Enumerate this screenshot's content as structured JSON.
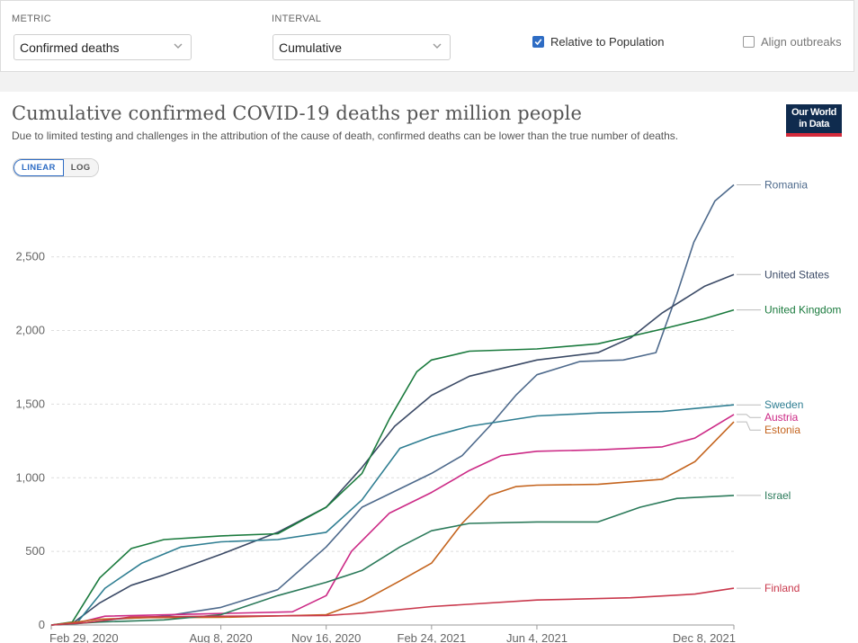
{
  "controls": {
    "metric_label": "METRIC",
    "metric_value": "Confirmed deaths",
    "interval_label": "INTERVAL",
    "interval_value": "Cumulative",
    "relative_label": "Relative to Population",
    "relative_checked": true,
    "align_label": "Align outbreaks",
    "align_checked": false
  },
  "header": {
    "title": "Cumulative confirmed COVID-19 deaths per million people",
    "subtitle": "Due to limited testing and challenges in the attribution of the cause of death, confirmed deaths can be lower than the true number of deaths.",
    "logo_line1": "Our World",
    "logo_line2": "in Data"
  },
  "scale": {
    "linear_label": "LINEAR",
    "log_label": "LOG",
    "active": "linear"
  },
  "chart_data": {
    "type": "line",
    "title": "Cumulative confirmed COVID-19 deaths per million people",
    "xlabel": "",
    "ylabel": "",
    "x_ticks": [
      "Feb 29, 2020",
      "Aug 8, 2020",
      "Nov 16, 2020",
      "Feb 24, 2021",
      "Jun 4, 2021",
      "Dec 8, 2021"
    ],
    "y_ticks": [
      0,
      500,
      1000,
      1500,
      2000,
      2500
    ],
    "ylim": [
      0,
      2950
    ],
    "xlim": [
      "2020-02-29",
      "2021-12-08"
    ],
    "grid": true,
    "legend": "right",
    "series": [
      {
        "name": "Romania",
        "color": "#4e6a8c",
        "points": [
          [
            "2020-02-29",
            0
          ],
          [
            "2020-03-25",
            10
          ],
          [
            "2020-05-01",
            40
          ],
          [
            "2020-06-15",
            60
          ],
          [
            "2020-08-08",
            120
          ],
          [
            "2020-10-01",
            240
          ],
          [
            "2020-11-16",
            530
          ],
          [
            "2020-12-20",
            800
          ],
          [
            "2021-02-01",
            950
          ],
          [
            "2021-02-24",
            1030
          ],
          [
            "2021-03-25",
            1150
          ],
          [
            "2021-04-20",
            1350
          ],
          [
            "2021-05-15",
            1560
          ],
          [
            "2021-06-04",
            1700
          ],
          [
            "2021-07-15",
            1790
          ],
          [
            "2021-08-25",
            1800
          ],
          [
            "2021-09-25",
            1850
          ],
          [
            "2021-10-15",
            2250
          ],
          [
            "2021-10-31",
            2600
          ],
          [
            "2021-11-20",
            2880
          ],
          [
            "2021-12-08",
            2990
          ]
        ]
      },
      {
        "name": "United States",
        "color": "#3b4a66",
        "points": [
          [
            "2020-02-29",
            0
          ],
          [
            "2020-03-20",
            10
          ],
          [
            "2020-04-15",
            150
          ],
          [
            "2020-05-15",
            270
          ],
          [
            "2020-06-15",
            340
          ],
          [
            "2020-08-08",
            480
          ],
          [
            "2020-10-01",
            630
          ],
          [
            "2020-11-16",
            800
          ],
          [
            "2020-12-20",
            1070
          ],
          [
            "2021-01-20",
            1350
          ],
          [
            "2021-02-24",
            1560
          ],
          [
            "2021-04-01",
            1690
          ],
          [
            "2021-06-04",
            1800
          ],
          [
            "2021-08-01",
            1850
          ],
          [
            "2021-09-01",
            1950
          ],
          [
            "2021-10-01",
            2120
          ],
          [
            "2021-11-10",
            2300
          ],
          [
            "2021-12-08",
            2380
          ]
        ]
      },
      {
        "name": "United Kingdom",
        "color": "#1a7a3d",
        "points": [
          [
            "2020-02-29",
            0
          ],
          [
            "2020-03-20",
            20
          ],
          [
            "2020-04-15",
            320
          ],
          [
            "2020-05-15",
            520
          ],
          [
            "2020-06-15",
            580
          ],
          [
            "2020-08-08",
            605
          ],
          [
            "2020-10-01",
            620
          ],
          [
            "2020-11-16",
            800
          ],
          [
            "2020-12-20",
            1030
          ],
          [
            "2021-01-15",
            1400
          ],
          [
            "2021-02-10",
            1720
          ],
          [
            "2021-02-24",
            1800
          ],
          [
            "2021-04-01",
            1860
          ],
          [
            "2021-06-04",
            1875
          ],
          [
            "2021-08-01",
            1910
          ],
          [
            "2021-10-01",
            2010
          ],
          [
            "2021-11-10",
            2080
          ],
          [
            "2021-12-08",
            2140
          ]
        ]
      },
      {
        "name": "Sweden",
        "color": "#2f7e92",
        "points": [
          [
            "2020-02-29",
            0
          ],
          [
            "2020-03-25",
            20
          ],
          [
            "2020-04-20",
            250
          ],
          [
            "2020-05-25",
            420
          ],
          [
            "2020-07-01",
            530
          ],
          [
            "2020-08-08",
            565
          ],
          [
            "2020-10-01",
            580
          ],
          [
            "2020-11-16",
            630
          ],
          [
            "2020-12-20",
            850
          ],
          [
            "2021-01-25",
            1200
          ],
          [
            "2021-02-24",
            1280
          ],
          [
            "2021-04-01",
            1350
          ],
          [
            "2021-06-04",
            1420
          ],
          [
            "2021-08-01",
            1440
          ],
          [
            "2021-10-01",
            1450
          ],
          [
            "2021-12-08",
            1495
          ]
        ]
      },
      {
        "name": "Austria",
        "color": "#cc2a86",
        "points": [
          [
            "2020-02-29",
            0
          ],
          [
            "2020-03-25",
            15
          ],
          [
            "2020-04-20",
            60
          ],
          [
            "2020-08-08",
            78
          ],
          [
            "2020-10-15",
            90
          ],
          [
            "2020-11-16",
            200
          ],
          [
            "2020-12-10",
            500
          ],
          [
            "2021-01-15",
            760
          ],
          [
            "2021-02-24",
            900
          ],
          [
            "2021-04-01",
            1050
          ],
          [
            "2021-05-01",
            1150
          ],
          [
            "2021-06-04",
            1180
          ],
          [
            "2021-08-01",
            1190
          ],
          [
            "2021-10-01",
            1210
          ],
          [
            "2021-11-01",
            1270
          ],
          [
            "2021-12-08",
            1430
          ]
        ]
      },
      {
        "name": "Estonia",
        "color": "#c4641e",
        "points": [
          [
            "2020-02-29",
            0
          ],
          [
            "2020-04-15",
            40
          ],
          [
            "2020-06-01",
            50
          ],
          [
            "2020-08-08",
            52
          ],
          [
            "2020-11-16",
            70
          ],
          [
            "2020-12-20",
            160
          ],
          [
            "2021-01-25",
            300
          ],
          [
            "2021-02-24",
            420
          ],
          [
            "2021-03-25",
            690
          ],
          [
            "2021-04-20",
            880
          ],
          [
            "2021-05-15",
            940
          ],
          [
            "2021-06-04",
            950
          ],
          [
            "2021-08-01",
            955
          ],
          [
            "2021-10-01",
            990
          ],
          [
            "2021-11-01",
            1110
          ],
          [
            "2021-12-08",
            1380
          ]
        ]
      },
      {
        "name": "Israel",
        "color": "#2b7a5a",
        "points": [
          [
            "2020-02-29",
            0
          ],
          [
            "2020-04-15",
            20
          ],
          [
            "2020-06-15",
            35
          ],
          [
            "2020-08-08",
            70
          ],
          [
            "2020-10-01",
            200
          ],
          [
            "2020-11-16",
            290
          ],
          [
            "2020-12-20",
            370
          ],
          [
            "2021-01-25",
            530
          ],
          [
            "2021-02-24",
            640
          ],
          [
            "2021-04-01",
            690
          ],
          [
            "2021-06-04",
            700
          ],
          [
            "2021-08-01",
            700
          ],
          [
            "2021-09-10",
            800
          ],
          [
            "2021-10-15",
            860
          ],
          [
            "2021-12-08",
            880
          ]
        ]
      },
      {
        "name": "Finland",
        "color": "#c9384c",
        "points": [
          [
            "2020-02-29",
            0
          ],
          [
            "2020-04-01",
            15
          ],
          [
            "2020-05-15",
            55
          ],
          [
            "2020-08-08",
            60
          ],
          [
            "2020-11-16",
            65
          ],
          [
            "2020-12-20",
            80
          ],
          [
            "2021-02-24",
            125
          ],
          [
            "2021-06-04",
            170
          ],
          [
            "2021-09-01",
            185
          ],
          [
            "2021-11-01",
            210
          ],
          [
            "2021-12-08",
            250
          ]
        ]
      }
    ]
  }
}
